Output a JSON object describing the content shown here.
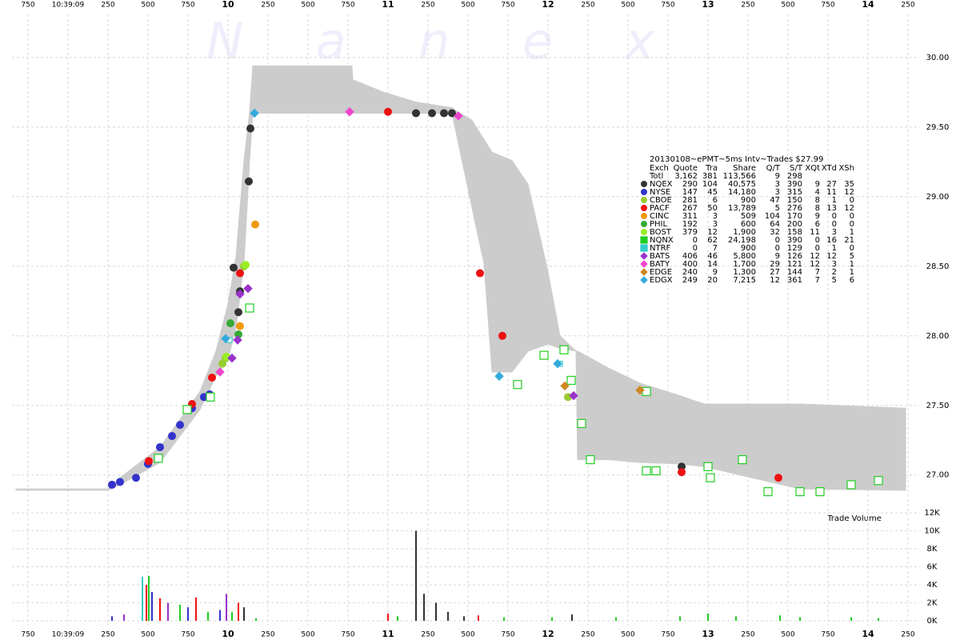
{
  "chart_data": {
    "type": "scatter",
    "watermark": "N a n e x",
    "xlim": [
      8.65,
      14.3
    ],
    "ylim": [
      26.78,
      30.31
    ],
    "xticks": [
      {
        "value": 8.75,
        "label": "750"
      },
      {
        "value": 9,
        "label": "10:39:09"
      },
      {
        "value": 9.25,
        "label": "250"
      },
      {
        "value": 9.5,
        "label": "500"
      },
      {
        "value": 9.75,
        "label": "750"
      },
      {
        "value": 10,
        "label": "10"
      },
      {
        "value": 10.25,
        "label": "250"
      },
      {
        "value": 10.5,
        "label": "500"
      },
      {
        "value": 10.75,
        "label": "750"
      },
      {
        "value": 11,
        "label": "11"
      },
      {
        "value": 11.25,
        "label": "250"
      },
      {
        "value": 11.5,
        "label": "500"
      },
      {
        "value": 11.75,
        "label": "750"
      },
      {
        "value": 12,
        "label": "12"
      },
      {
        "value": 12.25,
        "label": "250"
      },
      {
        "value": 12.5,
        "label": "500"
      },
      {
        "value": 12.75,
        "label": "750"
      },
      {
        "value": 13,
        "label": "13"
      },
      {
        "value": 13.25,
        "label": "250"
      },
      {
        "value": 13.5,
        "label": "500"
      },
      {
        "value": 13.75,
        "label": "750"
      },
      {
        "value": 14,
        "label": "14"
      },
      {
        "value": 14.25,
        "label": "250"
      }
    ],
    "yticks": [
      {
        "value": 27,
        "label": "27.00"
      },
      {
        "value": 27.5,
        "label": "27.50"
      },
      {
        "value": 28,
        "label": "28.00"
      },
      {
        "value": 28.5,
        "label": "28.50"
      },
      {
        "value": 29,
        "label": "29.00"
      },
      {
        "value": 29.5,
        "label": "29.50"
      },
      {
        "value": 30,
        "label": "30.00"
      }
    ],
    "grid": true,
    "band": {
      "color": "#cccccc",
      "x": [
        8.675,
        9.25,
        9.325,
        9.575,
        9.825,
        9.925,
        10.0,
        10.05,
        10.1,
        10.135,
        10.155,
        10.775,
        10.78,
        10.975,
        11.175,
        11.4,
        11.435,
        11.525,
        11.6,
        11.65,
        11.775,
        11.875,
        12.0,
        12.075,
        12.175,
        12.185,
        12.375,
        12.575,
        12.825,
        12.975,
        13.575,
        14.235
      ],
      "low": [
        26.89,
        26.89,
        26.93,
        27.09,
        27.47,
        27.71,
        27.83,
        28.06,
        28.52,
        29.26,
        29.6,
        29.6,
        29.6,
        29.6,
        29.6,
        29.6,
        29.41,
        28.92,
        28.52,
        27.74,
        27.74,
        27.89,
        27.94,
        27.91,
        27.89,
        27.11,
        27.11,
        27.09,
        27.08,
        27.06,
        26.9,
        26.89
      ],
      "high": [
        26.9,
        26.9,
        26.98,
        27.2,
        27.6,
        27.89,
        28.23,
        28.57,
        29.26,
        29.61,
        29.94,
        29.94,
        29.84,
        29.75,
        29.68,
        29.64,
        29.61,
        29.55,
        29.41,
        29.32,
        29.26,
        29.09,
        28.46,
        28.0,
        27.89,
        27.89,
        27.77,
        27.66,
        27.57,
        27.51,
        27.51,
        27.48
      ]
    },
    "legend": {
      "title": "20130108~ePMT~5ms Intv~Trades $27.99",
      "columns": [
        "Exch",
        "Quote",
        "Tra",
        "Share",
        "Q/T",
        "S/T",
        "XQt",
        "XTd",
        "XSh"
      ],
      "total": {
        "name": "Totl",
        "cells": [
          "3,162",
          "381",
          "113,566",
          "9",
          "298"
        ]
      }
    },
    "series": [
      {
        "name": "NQEX",
        "color": "#333333",
        "marker": "circle",
        "cells": [
          "290",
          "104",
          "40,575",
          "3",
          "390",
          "9",
          "27",
          "35"
        ],
        "x": [
          10.14,
          10.13,
          10.065,
          10.075,
          10.035,
          11.175,
          11.275,
          11.35,
          11.4,
          12.835
        ],
        "values": [
          29.49,
          29.11,
          28.17,
          28.32,
          28.49,
          29.6,
          29.6,
          29.6,
          29.6,
          27.06
        ]
      },
      {
        "name": "NYSE",
        "color": "#3333cc",
        "marker": "circle",
        "cells": [
          "147",
          "45",
          "14,180",
          "3",
          "315",
          "4",
          "11",
          "12"
        ],
        "x": [
          9.275,
          9.325,
          9.425,
          9.5,
          9.575,
          9.65,
          9.7,
          9.775,
          9.85,
          9.885
        ],
        "values": [
          26.93,
          26.95,
          26.98,
          27.08,
          27.2,
          27.28,
          27.36,
          27.48,
          27.56,
          27.58
        ]
      },
      {
        "name": "CBOE",
        "color": "#99cc33",
        "marker": "circle",
        "cells": [
          "281",
          "6",
          "900",
          "47",
          "150",
          "8",
          "1",
          "0"
        ],
        "x": [
          10.1,
          9.985,
          9.965,
          12.125
        ],
        "values": [
          28.5,
          27.84,
          27.8,
          27.56
        ]
      },
      {
        "name": "PACF",
        "color": "#ee1111",
        "marker": "circle",
        "cells": [
          "267",
          "50",
          "13,789",
          "5",
          "276",
          "8",
          "13",
          "12"
        ],
        "x": [
          9.505,
          9.775,
          9.9,
          10.075,
          11.575,
          11.715,
          12.835,
          13.44,
          11.0
        ],
        "values": [
          27.1,
          27.51,
          27.7,
          28.45,
          28.45,
          28.0,
          27.02,
          26.98,
          29.61
        ]
      },
      {
        "name": "CINC",
        "color": "#ee9911",
        "marker": "circle",
        "cells": [
          "311",
          "3",
          "509",
          "104",
          "170",
          "9",
          "0",
          "0"
        ],
        "x": [
          10.17,
          10.075
        ],
        "values": [
          28.8,
          28.07
        ]
      },
      {
        "name": "PHIL",
        "color": "#33aa33",
        "marker": "circle",
        "cells": [
          "192",
          "3",
          "600",
          "64",
          "200",
          "6",
          "0",
          "0"
        ],
        "x": [
          10.015,
          10.065
        ],
        "values": [
          28.09,
          28.01
        ]
      },
      {
        "name": "BOST",
        "color": "#99ee22",
        "marker": "circle",
        "cells": [
          "379",
          "12",
          "1,900",
          "32",
          "158",
          "11",
          "3",
          "1"
        ],
        "x": [
          10.11,
          9.99
        ],
        "values": [
          28.51,
          27.85
        ]
      },
      {
        "name": "NQNX",
        "color": "#22cc22",
        "marker": "square",
        "cells": [
          "0",
          "62",
          "24,198",
          "0",
          "390",
          "0",
          "16",
          "21"
        ],
        "x": [
          10.135,
          9.89,
          9.745,
          9.565,
          11.81,
          11.975,
          12.1,
          12.21,
          12.265,
          12.615,
          12.675,
          13.0,
          13.015,
          13.215,
          13.375,
          13.575,
          13.7,
          13.895,
          14.065,
          12.615,
          12.145
        ],
        "values": [
          28.2,
          27.56,
          27.47,
          27.12,
          27.65,
          27.86,
          27.9,
          27.37,
          27.11,
          27.03,
          27.03,
          27.06,
          26.98,
          27.11,
          26.88,
          26.88,
          26.88,
          26.93,
          26.96,
          27.6,
          27.68
        ]
      },
      {
        "name": "NTRF",
        "color": "#33cccc",
        "marker": "square",
        "cells": [
          "0",
          "7",
          "900",
          "0",
          "129",
          "0",
          "1",
          "0"
        ],
        "x": [
          12.075,
          10.01
        ],
        "values": [
          27.8,
          27.97
        ]
      },
      {
        "name": "BATS",
        "color": "#9933cc",
        "marker": "diamond",
        "cells": [
          "406",
          "46",
          "5,800",
          "9",
          "126",
          "12",
          "12",
          "5"
        ],
        "x": [
          10.06,
          10.125,
          10.075,
          10.025,
          12.16
        ],
        "values": [
          27.97,
          28.34,
          28.3,
          27.84,
          27.57
        ]
      },
      {
        "name": "BATY",
        "color": "#ee44cc",
        "marker": "diamond",
        "cells": [
          "400",
          "14",
          "1,700",
          "29",
          "121",
          "12",
          "3",
          "1"
        ],
        "x": [
          10.76,
          11.44,
          9.95
        ],
        "values": [
          29.61,
          29.58,
          27.74
        ]
      },
      {
        "name": "EDGE",
        "color": "#cc8822",
        "marker": "diamond",
        "cells": [
          "240",
          "9",
          "1,300",
          "27",
          "144",
          "7",
          "2",
          "1"
        ],
        "x": [
          12.105,
          12.575
        ],
        "values": [
          27.64,
          27.61
        ]
      },
      {
        "name": "EDGX",
        "color": "#33aadd",
        "marker": "diamond",
        "cells": [
          "249",
          "20",
          "7,215",
          "12",
          "361",
          "7",
          "5",
          "6"
        ],
        "x": [
          11.695,
          9.985,
          12.06,
          10.165
        ],
        "values": [
          27.71,
          27.98,
          27.8,
          29.6
        ]
      }
    ],
    "volume": {
      "label": "Trade Volume",
      "ylim": [
        0,
        12000
      ],
      "yticks": [
        {
          "value": 0,
          "label": "0K"
        },
        {
          "value": 2000,
          "label": "2K"
        },
        {
          "value": 4000,
          "label": "4K"
        },
        {
          "value": 6000,
          "label": "6K"
        },
        {
          "value": 8000,
          "label": "8K"
        },
        {
          "value": 10000,
          "label": "10K"
        },
        {
          "value": 12000,
          "label": "12K"
        }
      ],
      "x": [
        9.275,
        9.35,
        9.465,
        9.49,
        9.505,
        9.525,
        9.575,
        9.625,
        9.7,
        9.75,
        9.8,
        9.875,
        9.95,
        9.99,
        10.025,
        10.065,
        10.1,
        10.175,
        11.0,
        11.06,
        11.175,
        11.225,
        11.3,
        11.375,
        11.475,
        11.565,
        11.725,
        12.025,
        12.15,
        12.425,
        12.825,
        13.0,
        13.175,
        13.45,
        13.575,
        13.895,
        14.065
      ],
      "values": [
        500,
        700,
        4900,
        4000,
        5000,
        3200,
        2500,
        2000,
        1800,
        1500,
        2600,
        1000,
        1200,
        3000,
        1000,
        2000,
        1500,
        300,
        800,
        500,
        10000,
        3000,
        2000,
        1000,
        500,
        600,
        400,
        400,
        700,
        400,
        500,
        800,
        500,
        600,
        400,
        400,
        300
      ],
      "colors": [
        "#3333cc",
        "#9933cc",
        "#33cccc",
        "#ee1111",
        "#22cc22",
        "#3333cc",
        "#ee1111",
        "#9933cc",
        "#22cc22",
        "#3333cc",
        "#ee1111",
        "#22cc22",
        "#3333cc",
        "#9933cc",
        "#22cc22",
        "#ee1111",
        "#333333",
        "#22cc22",
        "#ee1111",
        "#22cc22",
        "#333333",
        "#333333",
        "#333333",
        "#333333",
        "#333333",
        "#ee1111",
        "#22cc22",
        "#22cc22",
        "#333333",
        "#22cc22",
        "#22cc22",
        "#22cc22",
        "#22cc22",
        "#22cc22",
        "#22cc22",
        "#22cc22",
        "#22cc22"
      ]
    }
  }
}
